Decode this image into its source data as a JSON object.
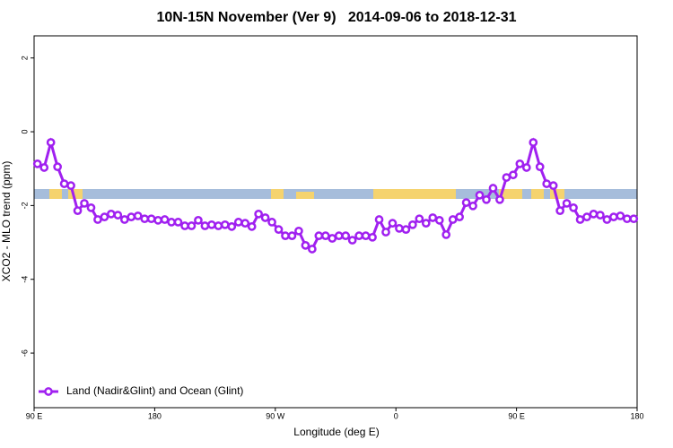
{
  "chart_data": {
    "type": "line",
    "title": "10N-15N November (Ver 9)   2014-09-06 to 2018-12-31",
    "x_label": "Longitude (deg E)",
    "y_label": "XCO2 - MLO trend (ppm)",
    "xlim": [
      90,
      540
    ],
    "ylim": [
      -7.48,
      2.6
    ],
    "xticks": [
      {
        "value": 90,
        "label": "90 E"
      },
      180,
      {
        "value": 270,
        "label": "90 W"
      },
      {
        "value": 360,
        "label": "0"
      },
      {
        "value": 450,
        "label": "90 E"
      },
      {
        "value": 540,
        "label": "180"
      }
    ],
    "yticks": [
      -6,
      -4,
      -2,
      0,
      2
    ],
    "legend": "bottom-left",
    "x": [
      92.5,
      97.5,
      102.5,
      107.5,
      112.5,
      117.5,
      122.5,
      127.5,
      132.5,
      137.5,
      142.5,
      147.5,
      152.5,
      157.5,
      162.5,
      167.5,
      172.5,
      177.5,
      182.5,
      187.5,
      192.5,
      197.5,
      202.5,
      207.5,
      212.5,
      217.5,
      222.5,
      227.5,
      232.5,
      237.5,
      242.5,
      247.5,
      252.5,
      257.5,
      262.5,
      267.5,
      272.5,
      277.5,
      282.5,
      287.5,
      292.5,
      297.5,
      302.5,
      307.5,
      312.5,
      317.5,
      322.5,
      327.5,
      332.5,
      337.5,
      342.5,
      347.5,
      352.5,
      357.5,
      362.5,
      367.5,
      372.5,
      377.5,
      382.5,
      387.5,
      392.5,
      397.5,
      402.5,
      407.5,
      412.5,
      417.5,
      422.5,
      427.5,
      432.5,
      437.5,
      442.5,
      447.5,
      452.5,
      457.5,
      462.5,
      467.5,
      472.5,
      477.5,
      482.5,
      487.5,
      492.5,
      497.5,
      502.5,
      507.5,
      512.5,
      517.5,
      522.5,
      527.5,
      532.5,
      537.5
    ],
    "series": [
      {
        "name": "Land (Nadir&Glint) and Ocean (Glint)",
        "color": "#a020f0",
        "values": [
          -0.87,
          -0.97,
          -0.29,
          -0.95,
          -1.41,
          -1.46,
          -2.14,
          -1.94,
          -2.06,
          -2.38,
          -2.31,
          -2.23,
          -2.26,
          -2.38,
          -2.31,
          -2.28,
          -2.36,
          -2.36,
          -2.4,
          -2.38,
          -2.45,
          -2.45,
          -2.55,
          -2.55,
          -2.4,
          -2.55,
          -2.52,
          -2.55,
          -2.52,
          -2.57,
          -2.45,
          -2.48,
          -2.57,
          -2.23,
          -2.33,
          -2.45,
          -2.65,
          -2.82,
          -2.82,
          -2.69,
          -3.08,
          -3.18,
          -2.82,
          -2.82,
          -2.89,
          -2.82,
          -2.82,
          -2.94,
          -2.82,
          -2.82,
          -2.86,
          -2.38,
          -2.72,
          -2.48,
          -2.62,
          -2.65,
          -2.52,
          -2.36,
          -2.48,
          -2.33,
          -2.4,
          -2.79,
          -2.38,
          -2.31,
          -1.92,
          -2.01,
          -1.72,
          -1.84,
          -1.53,
          -1.84,
          -1.24,
          -1.17,
          -0.87,
          -0.97,
          -0.29,
          -0.95,
          -1.41,
          -1.46,
          -2.14,
          -1.94,
          -2.06,
          -2.38,
          -2.31,
          -2.23,
          -2.26,
          -2.38,
          -2.31,
          -2.28,
          -2.36,
          -2.36
        ]
      }
    ]
  }
}
